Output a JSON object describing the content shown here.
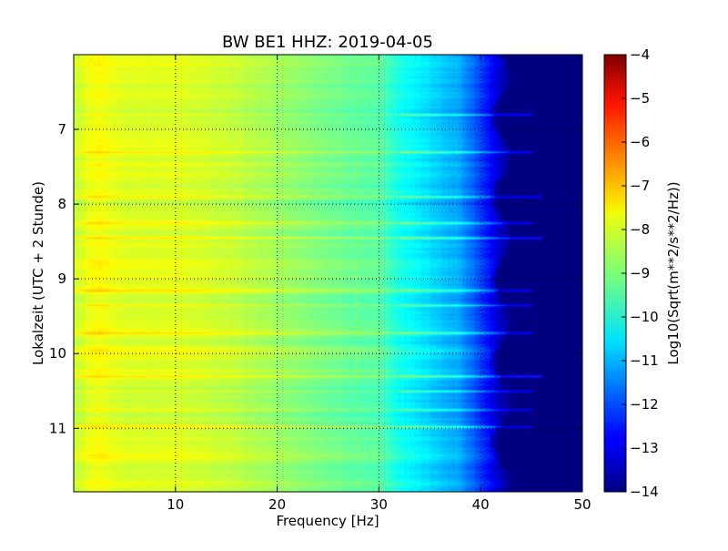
{
  "chart_data": {
    "type": "heatmap",
    "title": "BW BE1 HHZ: 2019-04-05",
    "xlabel": "Frequency [Hz]",
    "ylabel": "Lokalzeit (UTC + 2 Stunde)",
    "xlim": [
      0,
      50
    ],
    "ylim": [
      11.85,
      6.0
    ],
    "x_ticks": [
      10,
      20,
      30,
      40,
      50
    ],
    "y_ticks": [
      7,
      8,
      9,
      10,
      11
    ],
    "grid": true,
    "colormap": "jet",
    "colorbar": {
      "label": "Log10(Sqrt(m**2/s**2/Hz))",
      "range": [
        -14,
        -4
      ],
      "ticks": [
        -4,
        -5,
        -6,
        -7,
        -8,
        -9,
        -10,
        -11,
        -12,
        -13,
        -14
      ]
    },
    "spectrum_profile": [
      {
        "freq": 0,
        "value": -8.3
      },
      {
        "freq": 2,
        "value": -7.8
      },
      {
        "freq": 5,
        "value": -8.1
      },
      {
        "freq": 10,
        "value": -8.1
      },
      {
        "freq": 15,
        "value": -8.3
      },
      {
        "freq": 20,
        "value": -8.7
      },
      {
        "freq": 25,
        "value": -9.1
      },
      {
        "freq": 30,
        "value": -9.4
      },
      {
        "freq": 32,
        "value": -10.1
      },
      {
        "freq": 35,
        "value": -10.6
      },
      {
        "freq": 38,
        "value": -11.2
      },
      {
        "freq": 40,
        "value": -12.2
      },
      {
        "freq": 42,
        "value": -13.4
      },
      {
        "freq": 44,
        "value": -14.0
      },
      {
        "freq": 50,
        "value": -14.0
      }
    ],
    "horizontal_bands": [
      {
        "time": 6.8,
        "freq_extent": 45,
        "boost": 1.1
      },
      {
        "time": 7.3,
        "freq_extent": 45,
        "boost": 1.1
      },
      {
        "time": 7.9,
        "freq_extent": 46,
        "boost": 0.9
      },
      {
        "time": 8.25,
        "freq_extent": 45,
        "boost": 1.0
      },
      {
        "time": 8.45,
        "freq_extent": 46,
        "boost": 1.1
      },
      {
        "time": 9.15,
        "freq_extent": 45,
        "boost": 0.9
      },
      {
        "time": 9.35,
        "freq_extent": 45,
        "boost": 1.0
      },
      {
        "time": 9.72,
        "freq_extent": 45,
        "boost": 1.0
      },
      {
        "time": 10.3,
        "freq_extent": 46,
        "boost": 1.2
      },
      {
        "time": 10.5,
        "freq_extent": 45,
        "boost": 1.0
      },
      {
        "time": 10.75,
        "freq_extent": 45,
        "boost": 0.9
      },
      {
        "time": 10.98,
        "freq_extent": 45,
        "boost": 1.1
      }
    ]
  }
}
